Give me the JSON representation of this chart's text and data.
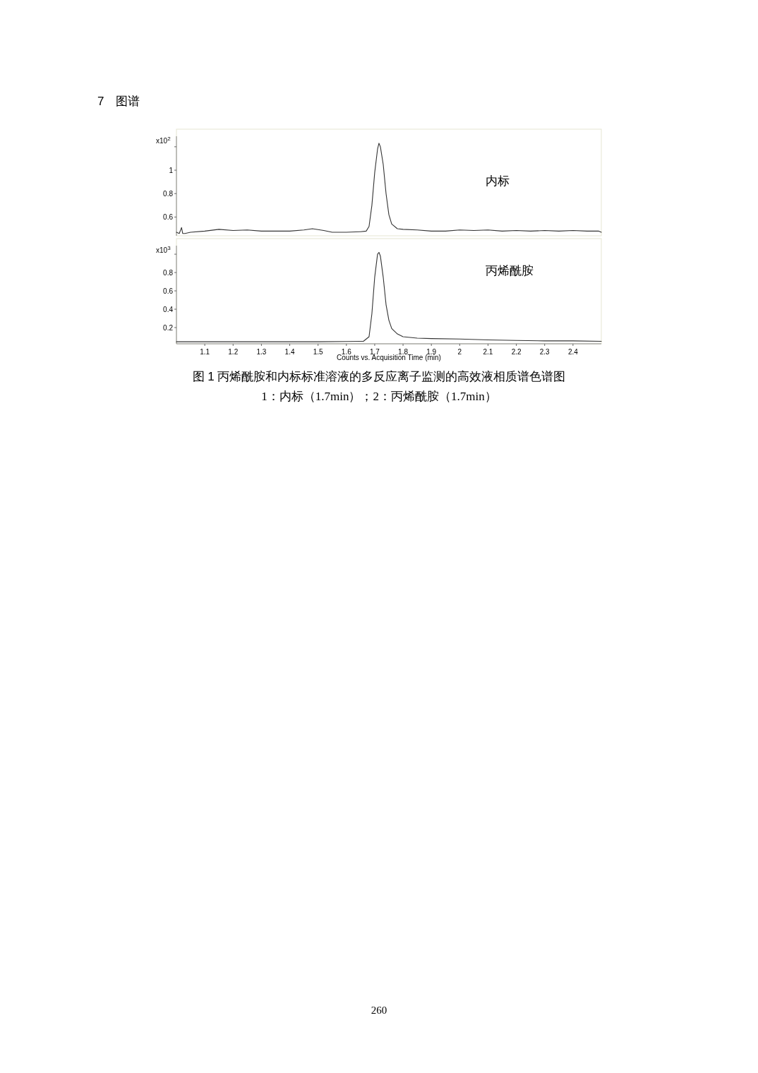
{
  "chart_data": [
    {
      "type": "line",
      "annotations": [
        "7　图谱"
      ],
      "ylabel": "x10$^{2}$",
      "xlim": [
        1.0,
        2.5
      ],
      "ylim": [
        0.44,
        1.35
      ],
      "yticks": [
        0.6,
        0.8,
        1,
        {
          "value": 1.2,
          "label": null
        }
      ],
      "tick_labels": "y",
      "grid": false,
      "marker": "none",
      "line_style": "solid",
      "series": [
        {
          "name": "内标",
          "color": "#333333",
          "x": [
            1.0,
            1.01,
            1.018,
            1.022,
            1.03,
            1.05,
            1.1,
            1.15,
            1.2,
            1.25,
            1.3,
            1.35,
            1.4,
            1.45,
            1.48,
            1.52,
            1.55,
            1.6,
            1.65,
            1.67,
            1.68,
            1.69,
            1.7,
            1.71,
            1.715,
            1.72,
            1.73,
            1.74,
            1.75,
            1.76,
            1.78,
            1.8,
            1.85,
            1.9,
            1.95,
            2.0,
            2.05,
            2.1,
            2.15,
            2.2,
            2.25,
            2.3,
            2.35,
            2.4,
            2.45,
            2.49,
            2.5
          ],
          "values": [
            0.47,
            0.46,
            0.51,
            0.46,
            0.46,
            0.47,
            0.48,
            0.495,
            0.485,
            0.49,
            0.48,
            0.48,
            0.48,
            0.49,
            0.5,
            0.485,
            0.47,
            0.47,
            0.475,
            0.48,
            0.52,
            0.7,
            0.98,
            1.18,
            1.23,
            1.2,
            1.05,
            0.8,
            0.62,
            0.54,
            0.5,
            0.495,
            0.49,
            0.48,
            0.48,
            0.49,
            0.485,
            0.49,
            0.48,
            0.485,
            0.48,
            0.485,
            0.48,
            0.485,
            0.48,
            0.48,
            0.47
          ]
        }
      ]
    },
    {
      "type": "line",
      "xlabel": "Counts vs. Acquisition Time (min)",
      "ylabel": "x10$^{3}$",
      "annotations": [
        "图 1 丙烯酰胺和内标标准溶液的多反应离子监测的高效液相质谱色谱图",
        "1：内标（1.7min）；2：丙烯酰胺（1.7min）",
        "260"
      ],
      "xlim": [
        1.0,
        2.5
      ],
      "ylim": [
        0.023,
        1.17
      ],
      "xticks": [
        1.1,
        1.2,
        1.3,
        1.4,
        1.5,
        1.6,
        1.7,
        1.8,
        1.9,
        2,
        2.1,
        2.2,
        2.3,
        2.4
      ],
      "yticks": [
        0.2,
        0.4,
        0.6,
        0.8,
        {
          "value": 1.0,
          "label": null
        }
      ],
      "grid": false,
      "marker": "none",
      "line_style": "solid",
      "series": [
        {
          "name": "丙烯酰胺",
          "color": "#333333",
          "x": [
            1.0,
            1.1,
            1.2,
            1.3,
            1.4,
            1.5,
            1.6,
            1.66,
            1.68,
            1.69,
            1.7,
            1.71,
            1.715,
            1.72,
            1.73,
            1.74,
            1.75,
            1.76,
            1.78,
            1.8,
            1.85,
            1.9,
            2.0,
            2.1,
            2.2,
            2.3,
            2.4,
            2.5
          ],
          "values": [
            0.045,
            0.045,
            0.045,
            0.045,
            0.045,
            0.045,
            0.048,
            0.05,
            0.1,
            0.35,
            0.75,
            1.0,
            1.02,
            0.98,
            0.75,
            0.45,
            0.28,
            0.19,
            0.13,
            0.1,
            0.085,
            0.08,
            0.075,
            0.065,
            0.06,
            0.055,
            0.055,
            0.05
          ]
        }
      ]
    }
  ]
}
